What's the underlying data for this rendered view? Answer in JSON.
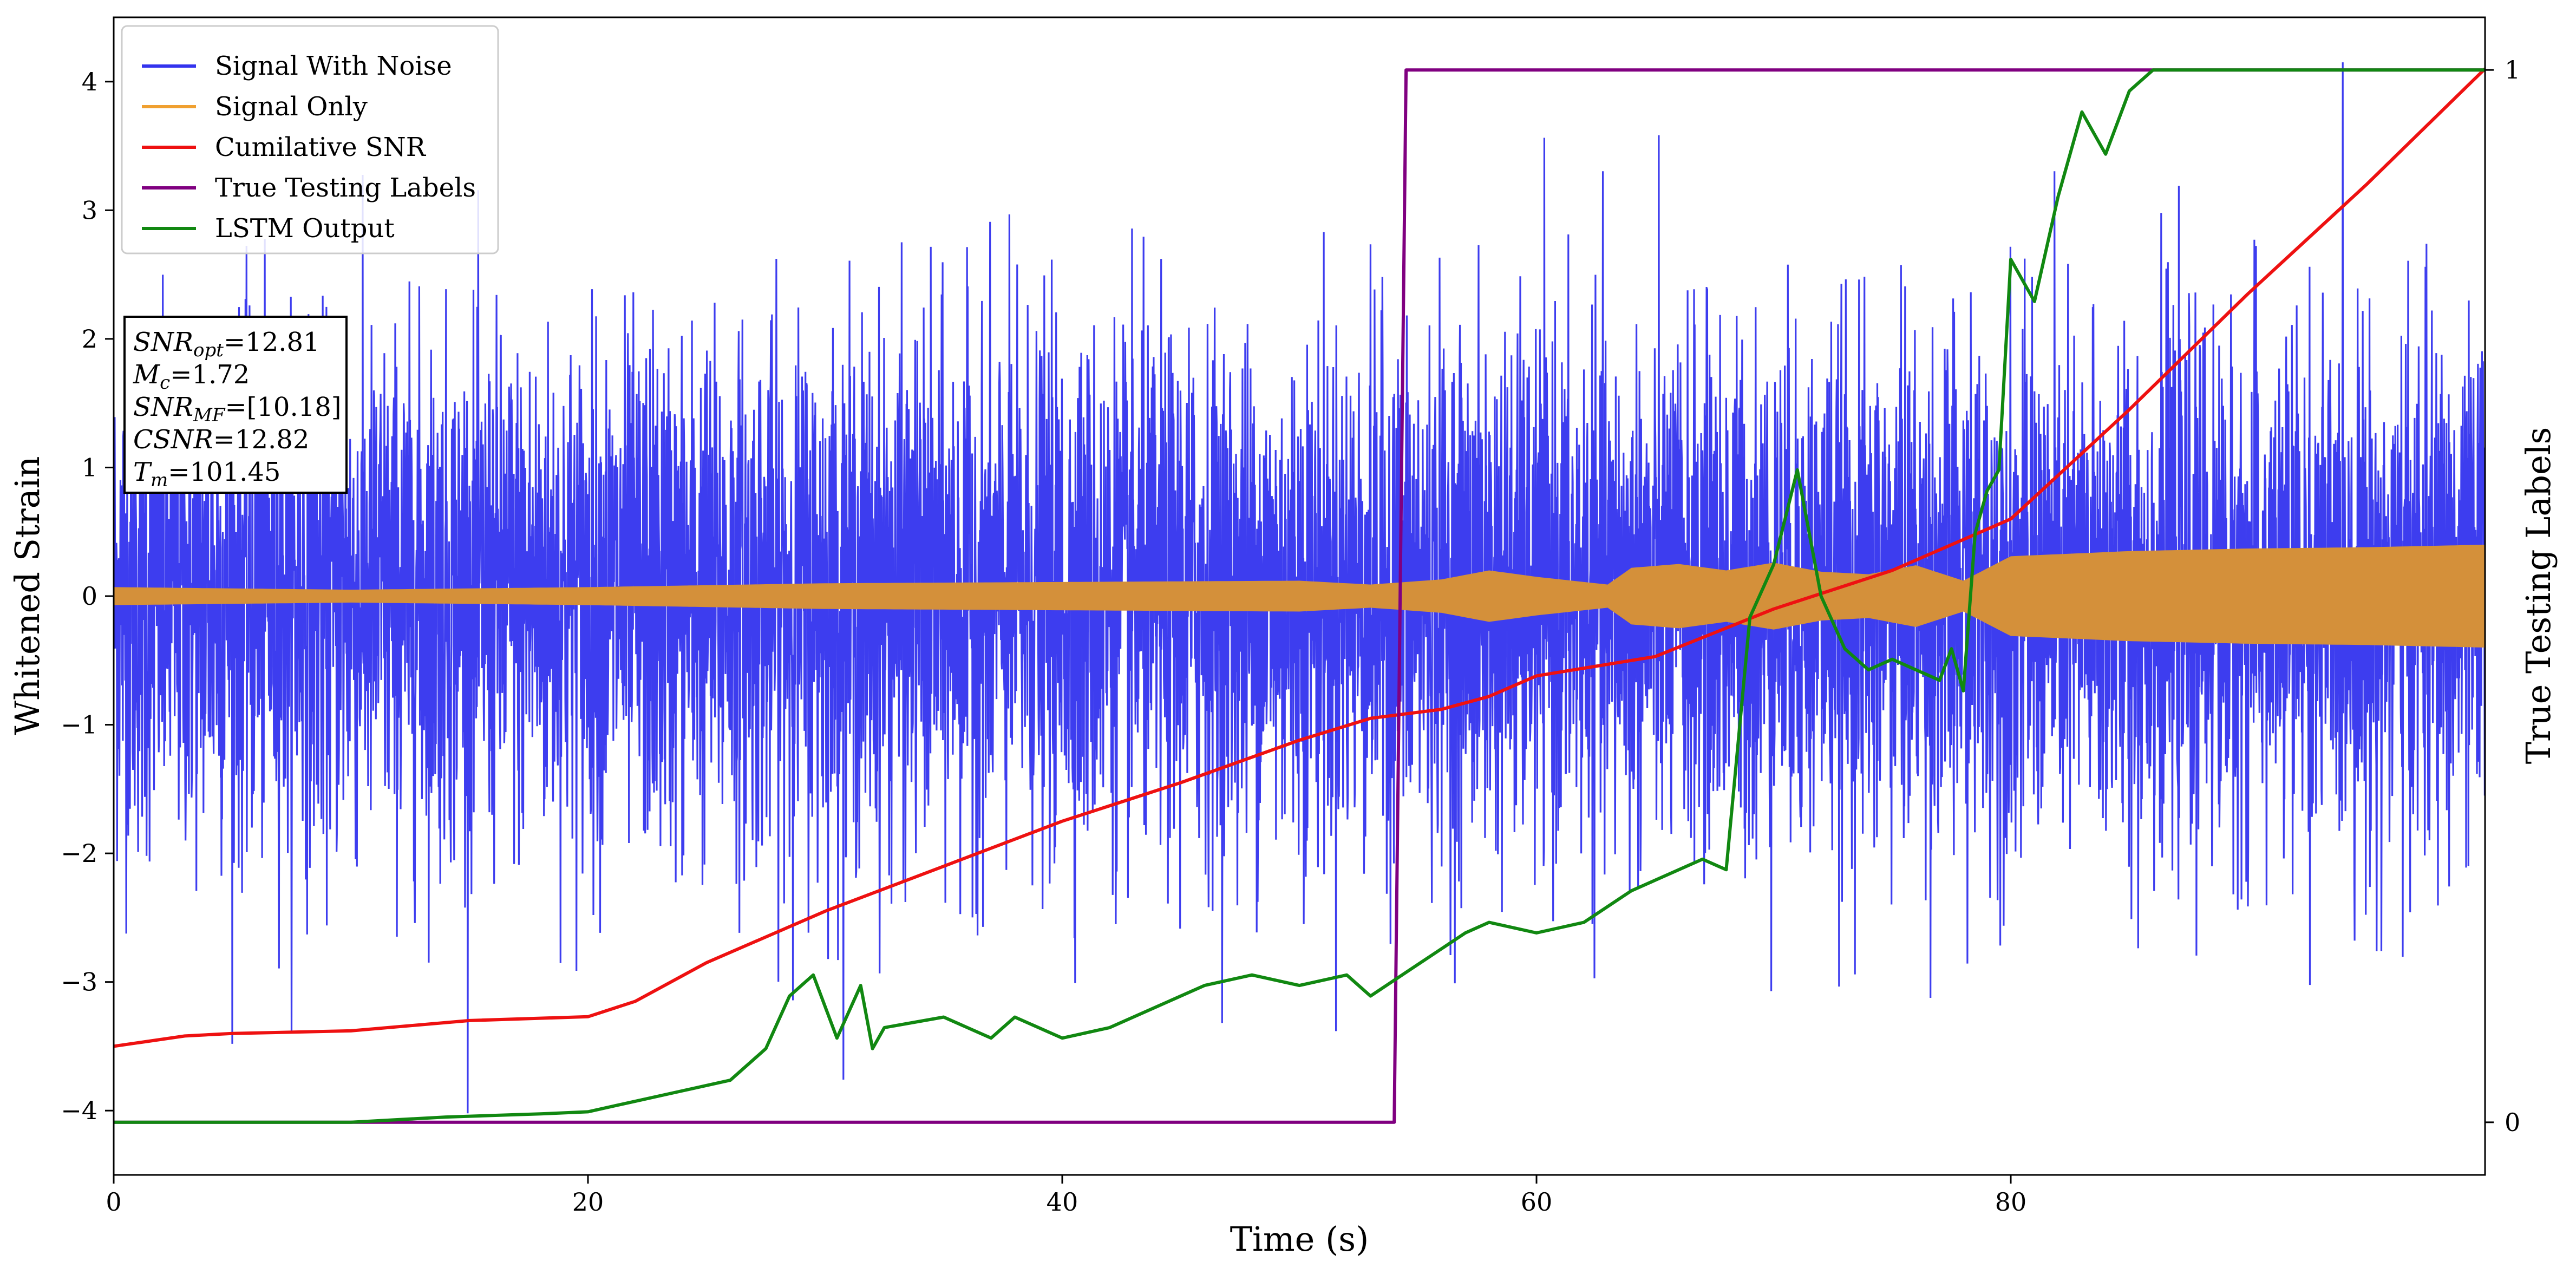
{
  "chart_data": {
    "type": "line",
    "xlabel": "Time (s)",
    "ylabel": "Whitened Strain",
    "ylabel_right": "True Testing Labels",
    "xlim": [
      0,
      100
    ],
    "ylim": [
      -4.5,
      4.5
    ],
    "ylim_right": [
      -0.05,
      1.05
    ],
    "x_ticks": [
      0,
      20,
      40,
      60,
      80
    ],
    "x_tick_labels": [
      "0",
      "20",
      "40",
      "60",
      "80"
    ],
    "y_ticks": [
      -4,
      -3,
      -2,
      -1,
      0,
      1,
      2,
      3,
      4
    ],
    "y_tick_labels": [
      "−4",
      "−3",
      "−2",
      "−1",
      "0",
      "1",
      "2",
      "3",
      "4"
    ],
    "y_ticks_right": [
      0,
      1
    ],
    "y_tick_labels_right": [
      "0",
      "1"
    ],
    "legend": {
      "placement": "top-left",
      "entries": [
        "Signal With Noise",
        "Signal Only",
        "Cumilative SNR",
        "True Testing Labels",
        "LSTM Output"
      ]
    },
    "colors": {
      "signal_with_noise": "#3333ee",
      "signal_only": "#f0a030",
      "signal_overlap": "#d4903a",
      "cumulative_snr": "#ee1111",
      "true_labels": "#800080",
      "lstm_output": "#118811"
    },
    "annotation": [
      {
        "name": "SNR",
        "sub": "opt",
        "value": "=12.81"
      },
      {
        "name": "M",
        "sub": "c",
        "value": "=1.72"
      },
      {
        "name": "SNR",
        "sub": "MF",
        "value": "=[10.18]"
      },
      {
        "name": "CSNR",
        "sub": "",
        "value": "=12.82"
      },
      {
        "name": "T",
        "sub": "m",
        "value": "=101.45"
      }
    ],
    "series": [
      {
        "name": "Signal With Noise",
        "kind": "noise",
        "x_range": [
          0,
          100
        ],
        "approx_std": 1.0,
        "approx_extremes": [
          -4.1,
          4.15
        ]
      },
      {
        "name": "Signal Only",
        "kind": "oscillation_envelope",
        "x": [
          0,
          10,
          20,
          30,
          40,
          50,
          53,
          56,
          58,
          60,
          63,
          64,
          66,
          68,
          70,
          72,
          74,
          76,
          78,
          80,
          85,
          90,
          95,
          100
        ],
        "amplitude": [
          0.07,
          0.05,
          0.07,
          0.1,
          0.11,
          0.12,
          0.09,
          0.13,
          0.2,
          0.15,
          0.09,
          0.22,
          0.25,
          0.2,
          0.26,
          0.19,
          0.17,
          0.24,
          0.12,
          0.31,
          0.35,
          0.37,
          0.38,
          0.4
        ]
      },
      {
        "name": "Cumilative SNR",
        "x": [
          0,
          3,
          5,
          10,
          15,
          20,
          22,
          25,
          30,
          35,
          40,
          45,
          50,
          53,
          56,
          58,
          60,
          65,
          70,
          75,
          80,
          85,
          90,
          95,
          100
        ],
        "y": [
          -3.5,
          -3.42,
          -3.4,
          -3.38,
          -3.3,
          -3.27,
          -3.15,
          -2.85,
          -2.45,
          -2.1,
          -1.75,
          -1.45,
          -1.12,
          -0.95,
          -0.88,
          -0.78,
          -0.62,
          -0.47,
          -0.1,
          0.2,
          0.6,
          1.45,
          2.35,
          3.2,
          4.1
        ]
      },
      {
        "name": "True Testing Labels",
        "axis": "right",
        "x": [
          0,
          54.0,
          54.5,
          100
        ],
        "y": [
          0,
          0,
          1,
          1
        ]
      },
      {
        "name": "LSTM Output",
        "axis": "right",
        "x": [
          0,
          10,
          14,
          18,
          20,
          22,
          24,
          26,
          27.5,
          28.5,
          29.5,
          30.5,
          31.5,
          32,
          32.5,
          35,
          37,
          38,
          39,
          40,
          42,
          44,
          46,
          48,
          50,
          52,
          53,
          55,
          57,
          58,
          60,
          62,
          64,
          65,
          67,
          68,
          69,
          70,
          71,
          72,
          73,
          74,
          75,
          76,
          77,
          77.5,
          78,
          78.5,
          79,
          79.5,
          80,
          81,
          82,
          83,
          84,
          85,
          86,
          88,
          90,
          95,
          100
        ],
        "y": [
          0,
          0,
          0.005,
          0.008,
          0.01,
          0.02,
          0.03,
          0.04,
          0.07,
          0.12,
          0.14,
          0.08,
          0.13,
          0.07,
          0.09,
          0.1,
          0.08,
          0.1,
          0.09,
          0.08,
          0.09,
          0.11,
          0.13,
          0.14,
          0.13,
          0.14,
          0.12,
          0.15,
          0.18,
          0.19,
          0.18,
          0.19,
          0.22,
          0.23,
          0.25,
          0.24,
          0.48,
          0.53,
          0.62,
          0.5,
          0.45,
          0.43,
          0.44,
          0.43,
          0.42,
          0.45,
          0.41,
          0.56,
          0.6,
          0.62,
          0.82,
          0.78,
          0.88,
          0.96,
          0.92,
          0.98,
          1.0,
          1.0,
          1.0,
          1.0,
          1.0
        ]
      }
    ]
  }
}
